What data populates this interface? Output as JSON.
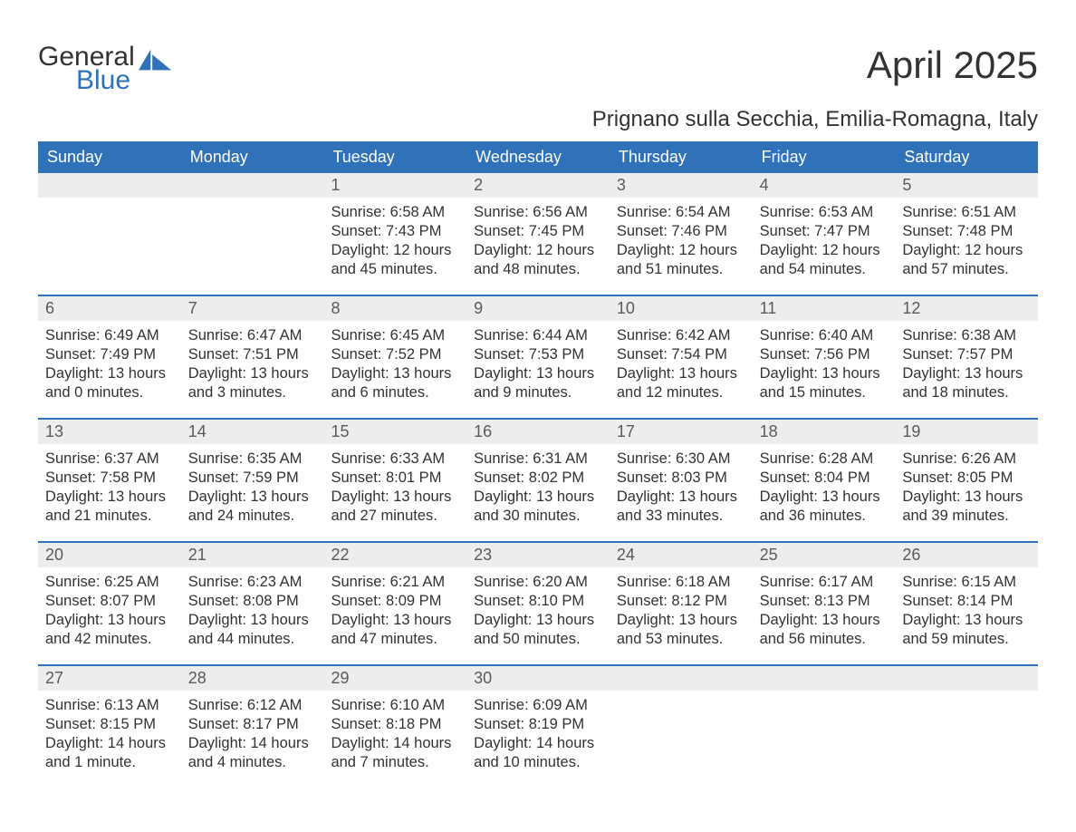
{
  "brand": {
    "word1": "General",
    "word2": "Blue",
    "sail_color": "#2f72b9"
  },
  "title": "April 2025",
  "subtitle": "Prignano sulla Secchia, Emilia-Romagna, Italy",
  "colors": {
    "header_bg": "#2f72b9",
    "header_text": "#ffffff",
    "daynum_bg": "#ededed",
    "daynum_text": "#5a5a5a",
    "body_text": "#333333",
    "page_bg": "#ffffff",
    "row_border": "#2f72b9"
  },
  "typography": {
    "title_fontsize": 42,
    "subtitle_fontsize": 24,
    "header_fontsize": 18,
    "daynum_fontsize": 18,
    "body_fontsize": 16.5,
    "font_family": "Arial"
  },
  "layout": {
    "columns": 7,
    "rows": 5,
    "leading_blanks": 2
  },
  "day_labels": [
    "Sunday",
    "Monday",
    "Tuesday",
    "Wednesday",
    "Thursday",
    "Friday",
    "Saturday"
  ],
  "days": [
    {
      "n": "1",
      "sr": "6:58 AM",
      "ss": "7:43 PM",
      "dl": "12 hours and 45 minutes."
    },
    {
      "n": "2",
      "sr": "6:56 AM",
      "ss": "7:45 PM",
      "dl": "12 hours and 48 minutes."
    },
    {
      "n": "3",
      "sr": "6:54 AM",
      "ss": "7:46 PM",
      "dl": "12 hours and 51 minutes."
    },
    {
      "n": "4",
      "sr": "6:53 AM",
      "ss": "7:47 PM",
      "dl": "12 hours and 54 minutes."
    },
    {
      "n": "5",
      "sr": "6:51 AM",
      "ss": "7:48 PM",
      "dl": "12 hours and 57 minutes."
    },
    {
      "n": "6",
      "sr": "6:49 AM",
      "ss": "7:49 PM",
      "dl": "13 hours and 0 minutes."
    },
    {
      "n": "7",
      "sr": "6:47 AM",
      "ss": "7:51 PM",
      "dl": "13 hours and 3 minutes."
    },
    {
      "n": "8",
      "sr": "6:45 AM",
      "ss": "7:52 PM",
      "dl": "13 hours and 6 minutes."
    },
    {
      "n": "9",
      "sr": "6:44 AM",
      "ss": "7:53 PM",
      "dl": "13 hours and 9 minutes."
    },
    {
      "n": "10",
      "sr": "6:42 AM",
      "ss": "7:54 PM",
      "dl": "13 hours and 12 minutes."
    },
    {
      "n": "11",
      "sr": "6:40 AM",
      "ss": "7:56 PM",
      "dl": "13 hours and 15 minutes."
    },
    {
      "n": "12",
      "sr": "6:38 AM",
      "ss": "7:57 PM",
      "dl": "13 hours and 18 minutes."
    },
    {
      "n": "13",
      "sr": "6:37 AM",
      "ss": "7:58 PM",
      "dl": "13 hours and 21 minutes."
    },
    {
      "n": "14",
      "sr": "6:35 AM",
      "ss": "7:59 PM",
      "dl": "13 hours and 24 minutes."
    },
    {
      "n": "15",
      "sr": "6:33 AM",
      "ss": "8:01 PM",
      "dl": "13 hours and 27 minutes."
    },
    {
      "n": "16",
      "sr": "6:31 AM",
      "ss": "8:02 PM",
      "dl": "13 hours and 30 minutes."
    },
    {
      "n": "17",
      "sr": "6:30 AM",
      "ss": "8:03 PM",
      "dl": "13 hours and 33 minutes."
    },
    {
      "n": "18",
      "sr": "6:28 AM",
      "ss": "8:04 PM",
      "dl": "13 hours and 36 minutes."
    },
    {
      "n": "19",
      "sr": "6:26 AM",
      "ss": "8:05 PM",
      "dl": "13 hours and 39 minutes."
    },
    {
      "n": "20",
      "sr": "6:25 AM",
      "ss": "8:07 PM",
      "dl": "13 hours and 42 minutes."
    },
    {
      "n": "21",
      "sr": "6:23 AM",
      "ss": "8:08 PM",
      "dl": "13 hours and 44 minutes."
    },
    {
      "n": "22",
      "sr": "6:21 AM",
      "ss": "8:09 PM",
      "dl": "13 hours and 47 minutes."
    },
    {
      "n": "23",
      "sr": "6:20 AM",
      "ss": "8:10 PM",
      "dl": "13 hours and 50 minutes."
    },
    {
      "n": "24",
      "sr": "6:18 AM",
      "ss": "8:12 PM",
      "dl": "13 hours and 53 minutes."
    },
    {
      "n": "25",
      "sr": "6:17 AM",
      "ss": "8:13 PM",
      "dl": "13 hours and 56 minutes."
    },
    {
      "n": "26",
      "sr": "6:15 AM",
      "ss": "8:14 PM",
      "dl": "13 hours and 59 minutes."
    },
    {
      "n": "27",
      "sr": "6:13 AM",
      "ss": "8:15 PM",
      "dl": "14 hours and 1 minute."
    },
    {
      "n": "28",
      "sr": "6:12 AM",
      "ss": "8:17 PM",
      "dl": "14 hours and 4 minutes."
    },
    {
      "n": "29",
      "sr": "6:10 AM",
      "ss": "8:18 PM",
      "dl": "14 hours and 7 minutes."
    },
    {
      "n": "30",
      "sr": "6:09 AM",
      "ss": "8:19 PM",
      "dl": "14 hours and 10 minutes."
    }
  ],
  "field_labels": {
    "sunrise": "Sunrise: ",
    "sunset": "Sunset: ",
    "daylight": "Daylight: "
  }
}
